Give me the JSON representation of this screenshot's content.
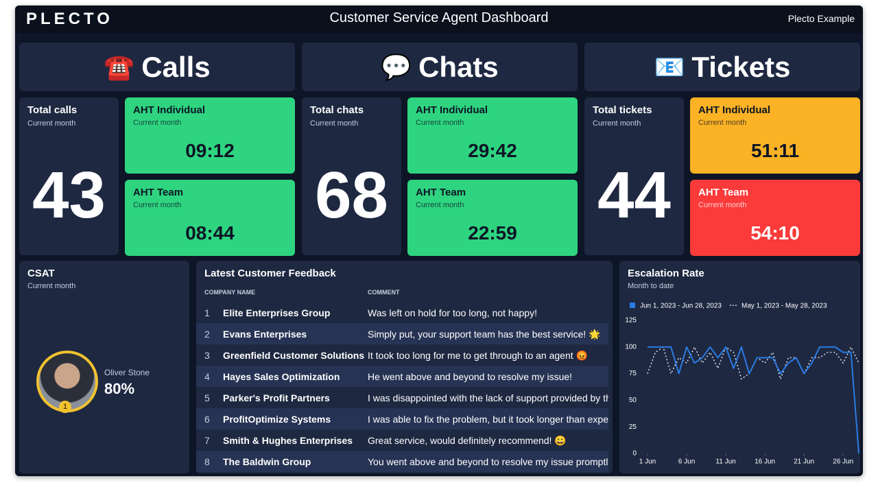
{
  "header": {
    "logo": "PLECTO",
    "title": "Customer Service Agent Dashboard",
    "account": "Plecto Example"
  },
  "sections": [
    {
      "icon": "☎️",
      "title": "Calls",
      "total": {
        "label": "Total calls",
        "period": "Current month",
        "value": 43
      },
      "aht_individual": {
        "label": "AHT Individual",
        "period": "Current month",
        "value": "09:12",
        "color": "#2ed47f",
        "text_color": "#0d1526"
      },
      "aht_team": {
        "label": "AHT Team",
        "period": "Current month",
        "value": "08:44",
        "color": "#2ed47f",
        "text_color": "#0d1526"
      }
    },
    {
      "icon": "💬",
      "title": "Chats",
      "total": {
        "label": "Total chats",
        "period": "Current month",
        "value": 68
      },
      "aht_individual": {
        "label": "AHT Individual",
        "period": "Current month",
        "value": "29:42",
        "color": "#2ed47f",
        "text_color": "#0d1526"
      },
      "aht_team": {
        "label": "AHT Team",
        "period": "Current month",
        "value": "22:59",
        "color": "#2ed47f",
        "text_color": "#0d1526"
      }
    },
    {
      "icon": "📧",
      "title": "Tickets",
      "total": {
        "label": "Total tickets",
        "period": "Current month",
        "value": 44
      },
      "aht_individual": {
        "label": "AHT Individual",
        "period": "Current month",
        "value": "51:11",
        "color": "#fbb224",
        "text_color": "#0d1526"
      },
      "aht_team": {
        "label": "AHT Team",
        "period": "Current month",
        "value": "54:10",
        "color": "#fb3a3a",
        "text_color": "#ffffff"
      }
    }
  ],
  "csat": {
    "title": "CSAT",
    "period": "Current month",
    "agent": "Oliver Stone",
    "value": "80%",
    "rank": 1
  },
  "feedback": {
    "title": "Latest Customer Feedback",
    "columns": [
      "COMPANY NAME",
      "COMMENT"
    ],
    "rows": [
      [
        1,
        "Elite Enterprises Group",
        "Was left on hold for too long, not happy!"
      ],
      [
        2,
        "Evans Enterprises",
        "Simply put, your support team has the best service! 🌟"
      ],
      [
        3,
        "Greenfield Customer Solutions",
        "It took too long for me to get through to an agent 😡"
      ],
      [
        4,
        "Hayes Sales Optimization",
        "He went above and beyond to resolve my issue!"
      ],
      [
        5,
        "Parker's Profit Partners",
        "I was disappointed with the lack of support provided by the"
      ],
      [
        6,
        "ProfitOptimize Systems",
        "I was able to fix the problem, but it took longer than expecte"
      ],
      [
        7,
        "Smith & Hughes Enterprises",
        "Great service, would definitely recommend! 😀"
      ],
      [
        8,
        "The Baldwin Group",
        "You went above and beyond to resolve my issue promptly a"
      ]
    ]
  },
  "chart_data": {
    "type": "line",
    "title": "Escalation Rate",
    "subtitle": "Month to date",
    "x": [
      1,
      2,
      3,
      4,
      5,
      6,
      7,
      8,
      9,
      10,
      11,
      12,
      13,
      14,
      15,
      16,
      17,
      18,
      19,
      20,
      21,
      22,
      23,
      24,
      25,
      26,
      27,
      28
    ],
    "series": [
      {
        "name": "Jun 1, 2023 - Jun 28, 2023",
        "color": "#2a7be4",
        "values": [
          100,
          100,
          100,
          100,
          75,
          100,
          85,
          90,
          100,
          90,
          100,
          80,
          100,
          75,
          90,
          90,
          90,
          75,
          85,
          90,
          75,
          85,
          100,
          100,
          100,
          95,
          95,
          0
        ]
      },
      {
        "name": "May 1, 2023 - May 28, 2023",
        "color": "#d5dbe6",
        "values": [
          75,
          95,
          100,
          75,
          90,
          85,
          100,
          85,
          95,
          80,
          100,
          95,
          70,
          75,
          90,
          85,
          95,
          70,
          90,
          90,
          75,
          90,
          90,
          95,
          95,
          85,
          100,
          85
        ]
      }
    ],
    "xlim": [
      1,
      28
    ],
    "xticks": [
      {
        "value": 1,
        "label": "1 Jun"
      },
      {
        "value": 6,
        "label": "6 Jun"
      },
      {
        "value": 11,
        "label": "11 Jun"
      },
      {
        "value": 16,
        "label": "16 Jun"
      },
      {
        "value": 21,
        "label": "21 Jun"
      },
      {
        "value": 26,
        "label": "26 Jun"
      }
    ],
    "ylim": [
      0,
      125
    ],
    "yticks": [
      0,
      25,
      50,
      75,
      100,
      125
    ],
    "grid": false,
    "legend": "top"
  }
}
